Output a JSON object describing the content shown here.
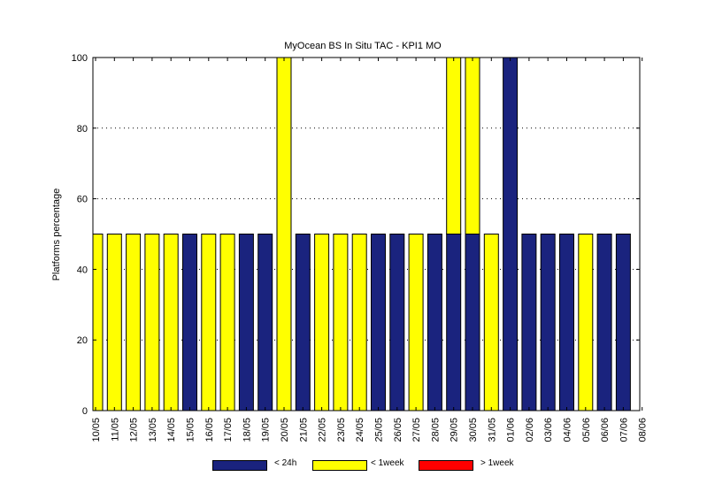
{
  "chart_data": {
    "type": "bar",
    "stacked": true,
    "title": "MyOcean  BS In Situ TAC - KPI1  MO",
    "ylabel": "Platforms percentage",
    "xlabel": "",
    "ylim": [
      0,
      100
    ],
    "yticks": [
      0,
      20,
      40,
      60,
      80,
      100
    ],
    "grid": "horizontal-dotted",
    "legend_position": "bottom",
    "colors": {
      "lt24h": "#1a237e",
      "lt1week": "#ffff00",
      "gt1week": "#ff0000"
    },
    "categories": [
      "10/05",
      "11/05",
      "12/05",
      "13/05",
      "14/05",
      "15/05",
      "16/05",
      "17/05",
      "18/05",
      "19/05",
      "20/05",
      "21/05",
      "22/05",
      "23/05",
      "24/05",
      "25/05",
      "26/05",
      "27/05",
      "28/05",
      "29/05",
      "30/05",
      "31/05",
      "01/06",
      "02/06",
      "03/06",
      "04/06",
      "05/06",
      "06/06",
      "07/06",
      "08/06"
    ],
    "series": [
      {
        "name": "< 24h",
        "key": "lt24h",
        "values": [
          0,
          0,
          0,
          0,
          0,
          50,
          0,
          0,
          50,
          50,
          0,
          50,
          0,
          0,
          0,
          50,
          50,
          0,
          50,
          50,
          50,
          0,
          100,
          50,
          50,
          50,
          0,
          50,
          50,
          null
        ]
      },
      {
        "name": "< 1week",
        "key": "lt1week",
        "values": [
          50,
          50,
          50,
          50,
          50,
          0,
          50,
          50,
          0,
          0,
          100,
          0,
          50,
          50,
          50,
          0,
          0,
          50,
          0,
          50,
          50,
          50,
          0,
          0,
          0,
          0,
          50,
          0,
          0,
          null
        ]
      },
      {
        "name": "> 1week",
        "key": "gt1week",
        "values": [
          0,
          0,
          0,
          0,
          0,
          0,
          0,
          0,
          0,
          0,
          0,
          0,
          0,
          0,
          0,
          0,
          0,
          0,
          0,
          0,
          0,
          0,
          0,
          0,
          0,
          0,
          0,
          0,
          0,
          null
        ]
      }
    ]
  }
}
